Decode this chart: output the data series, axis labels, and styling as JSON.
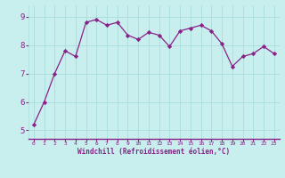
{
  "x": [
    0,
    1,
    2,
    3,
    4,
    5,
    6,
    7,
    8,
    9,
    10,
    11,
    12,
    13,
    14,
    15,
    16,
    17,
    18,
    19,
    20,
    21,
    22,
    23
  ],
  "y": [
    5.2,
    6.0,
    7.0,
    7.8,
    7.6,
    8.8,
    8.9,
    8.7,
    8.8,
    8.35,
    8.2,
    8.45,
    8.35,
    7.95,
    8.5,
    8.6,
    8.7,
    8.5,
    8.05,
    7.25,
    7.6,
    7.7,
    7.95,
    7.7
  ],
  "line_color": "#882288",
  "marker_color": "#882288",
  "bg_color": "#C8EEEE",
  "grid_color": "#AADDDD",
  "xlabel": "Windchill (Refroidissement éolien,°C)",
  "xlabel_color": "#882288",
  "tick_color": "#882288",
  "ylim": [
    4.7,
    9.4
  ],
  "yticks": [
    5,
    6,
    7,
    8,
    9
  ],
  "xlim": [
    -0.5,
    23.5
  ]
}
